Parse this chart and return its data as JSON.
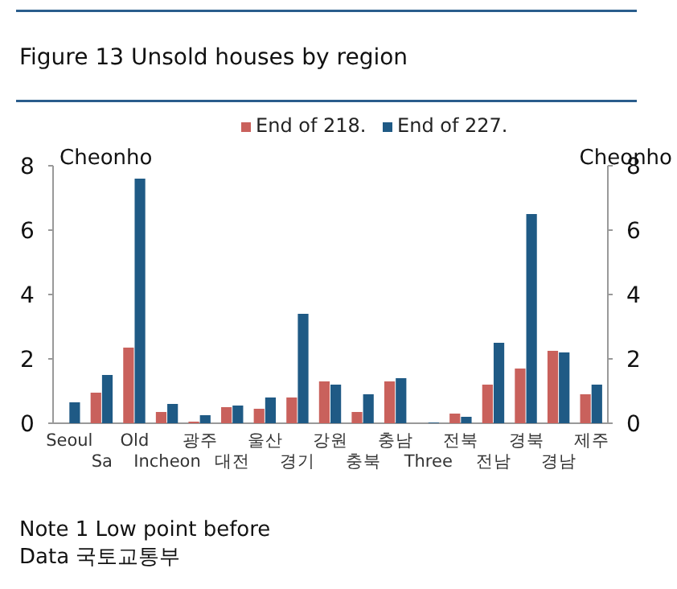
{
  "chart_data": {
    "type": "bar",
    "title": "Figure 13 Unsold houses by region",
    "categories": [
      "Seoul",
      "Sa",
      "Old",
      "Incheon",
      "광주",
      "대전",
      "울산",
      "경기",
      "강원",
      "충북",
      "충남",
      "Three",
      "전북",
      "전남",
      "경북",
      "경남",
      "제주"
    ],
    "series": [
      {
        "name": "End of 218.",
        "color": "#c9615c",
        "values": [
          0,
          0.95,
          2.35,
          0.35,
          0.05,
          0.5,
          0.45,
          0.8,
          1.3,
          0.35,
          1.3,
          0,
          0.3,
          1.2,
          1.7,
          2.25,
          0.9
        ]
      },
      {
        "name": "End of 227.",
        "color": "#1f5a85",
        "values": [
          0.65,
          1.5,
          7.6,
          0.6,
          0.25,
          0.55,
          0.8,
          3.4,
          1.2,
          0.9,
          1.4,
          0.02,
          0.2,
          2.5,
          6.5,
          2.2,
          1.2
        ]
      }
    ],
    "ylabel": "Cheonho",
    "y2label": "Cheonho",
    "ylim": [
      0,
      8
    ],
    "yticks": [
      0,
      2,
      4,
      6,
      8
    ],
    "y2lim": [
      0,
      8
    ],
    "y2ticks": [
      0,
      2,
      4,
      6,
      8
    ],
    "legend": "top",
    "grid": false,
    "annotations": [
      "Note 1 Low point before",
      "Data 국토교통부"
    ]
  }
}
